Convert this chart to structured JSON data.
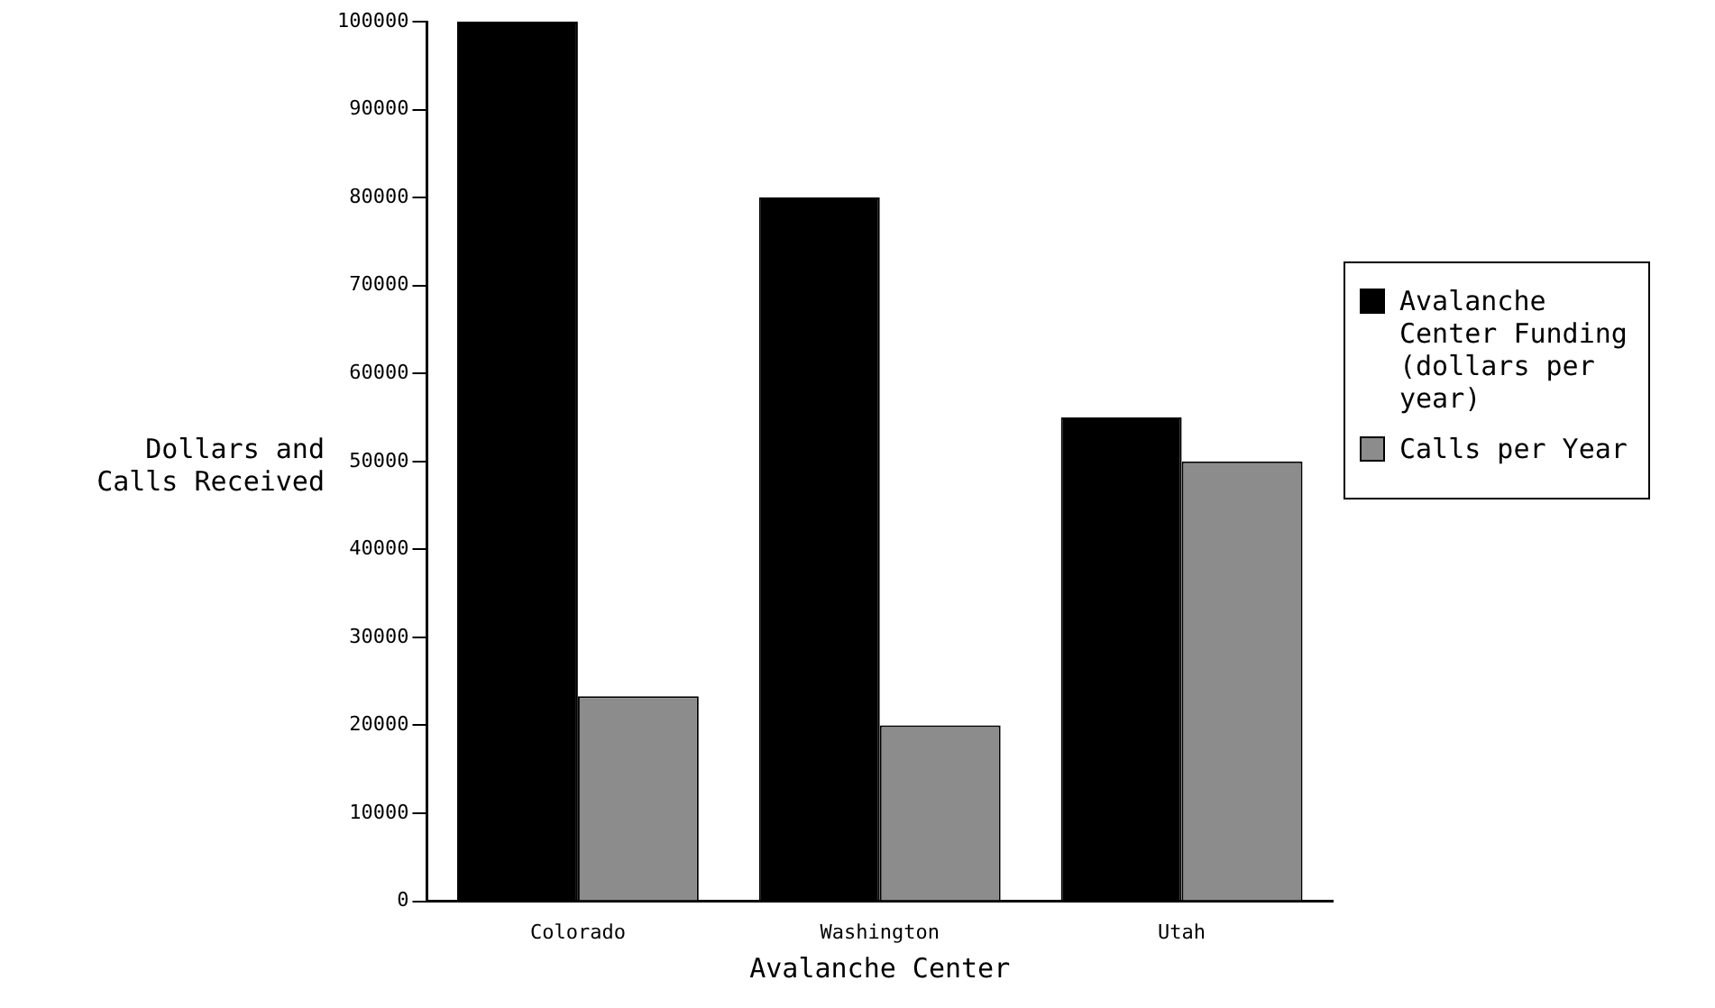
{
  "chart_data": {
    "type": "bar",
    "xlabel": "Avalanche Center",
    "ylabel": "Dollars and Calls Received",
    "categories": [
      "Colorado",
      "Washington",
      "Utah"
    ],
    "series": [
      {
        "name": "Avalanche Center Funding (dollars per year)",
        "color": "#000000",
        "values": [
          100000,
          80000,
          55000
        ]
      },
      {
        "name": "Calls per Year",
        "color": "#8c8c8c",
        "values": [
          23300,
          20000,
          50000
        ]
      }
    ],
    "ylim": [
      0,
      100000
    ],
    "yticks": [
      0,
      10000,
      20000,
      30000,
      40000,
      50000,
      60000,
      70000,
      80000,
      90000,
      100000
    ],
    "grid": false,
    "legend": "right"
  }
}
